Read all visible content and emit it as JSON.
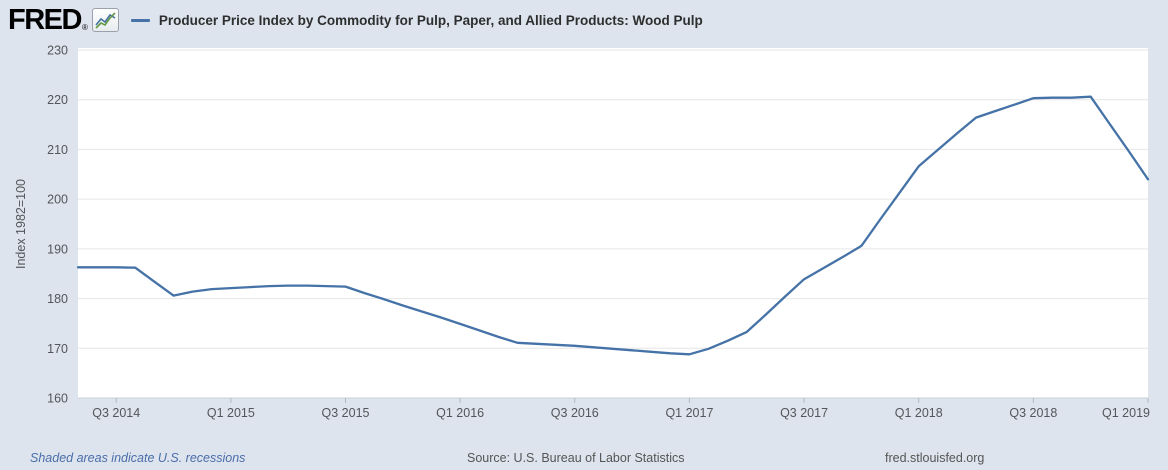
{
  "header": {
    "logo_text": "FRED",
    "registered_mark": "®",
    "series_title": "Producer Price Index by Commodity for Pulp, Paper, and Allied Products: Wood Pulp"
  },
  "footer": {
    "recessions_note": "Shaded areas indicate U.S. recessions",
    "source": "Source: U.S. Bureau of Labor Statistics",
    "site": "fred.stlouisfed.org"
  },
  "chart_data": {
    "type": "line",
    "title": "Producer Price Index by Commodity for Pulp, Paper, and Allied Products: Wood Pulp",
    "xlabel": "",
    "ylabel": "Index 1982=100",
    "ylim": [
      160,
      230
    ],
    "y_ticks": [
      160,
      170,
      180,
      190,
      200,
      210,
      220,
      230
    ],
    "grid": "horizontal",
    "legend_position": "top-left",
    "line_color": "#4572a7",
    "x_tick_labels": [
      "Q3 2014",
      "Q1 2015",
      "Q3 2015",
      "Q1 2016",
      "Q3 2016",
      "Q1 2017",
      "Q3 2017",
      "Q1 2018",
      "Q3 2018",
      "Q1 2019"
    ],
    "x_tick_month_offsets": [
      2,
      8,
      14,
      20,
      26,
      32,
      38,
      44,
      50,
      56
    ],
    "series": [
      {
        "name": "Producer Price Index by Commodity for Pulp, Paper, and Allied Products: Wood Pulp",
        "x": [
          "2014-05",
          "2014-06",
          "2014-07",
          "2014-08",
          "2014-09",
          "2014-10",
          "2014-11",
          "2014-12",
          "2015-01",
          "2015-02",
          "2015-03",
          "2015-04",
          "2015-05",
          "2015-06",
          "2015-07",
          "2015-08",
          "2015-09",
          "2015-10",
          "2015-11",
          "2015-12",
          "2016-01",
          "2016-02",
          "2016-03",
          "2016-04",
          "2016-05",
          "2016-06",
          "2016-07",
          "2016-08",
          "2016-09",
          "2016-10",
          "2016-11",
          "2016-12",
          "2017-01",
          "2017-02",
          "2017-03",
          "2017-04",
          "2017-05",
          "2017-06",
          "2017-07",
          "2017-08",
          "2017-09",
          "2017-10",
          "2017-11",
          "2017-12",
          "2018-01",
          "2018-02",
          "2018-03",
          "2018-04",
          "2018-05",
          "2018-06",
          "2018-07",
          "2018-08",
          "2018-09",
          "2018-10",
          "2018-11",
          "2018-12",
          "2019-01"
        ],
        "values": [
          186.3,
          186.3,
          186.3,
          186.2,
          183.4,
          180.6,
          181.4,
          181.9,
          182.1,
          182.3,
          182.5,
          182.6,
          182.6,
          182.5,
          182.4,
          181.1,
          179.9,
          178.6,
          177.4,
          176.2,
          174.9,
          173.6,
          172.3,
          171.1,
          170.9,
          170.7,
          170.5,
          170.2,
          169.9,
          169.6,
          169.3,
          169.0,
          168.8,
          169.9,
          171.5,
          173.3,
          176.8,
          180.4,
          183.9,
          186.1,
          188.3,
          190.6,
          196.0,
          201.3,
          206.6,
          209.9,
          213.2,
          216.4,
          217.7,
          219.0,
          220.3,
          220.4,
          220.4,
          220.6,
          215.1,
          209.6,
          204.0
        ]
      }
    ]
  }
}
